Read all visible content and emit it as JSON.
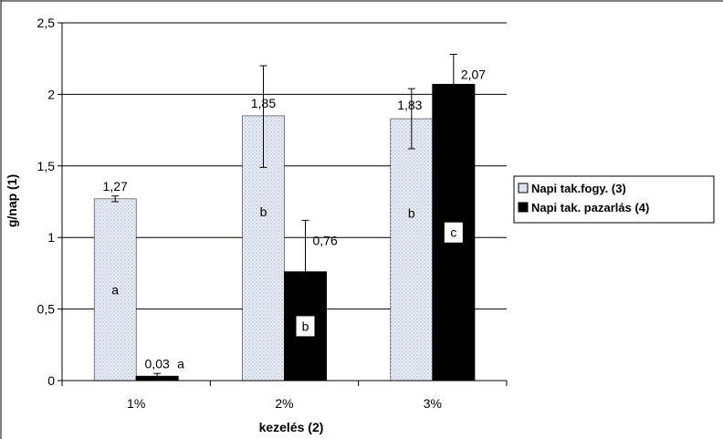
{
  "chart_data": {
    "type": "bar",
    "categories": [
      "1%",
      "2%",
      "3%"
    ],
    "xlabel": "kezelés (2)",
    "ylabel": "g/nap (1)",
    "ylim": [
      0,
      2.5
    ],
    "yticks": [
      "0",
      "0,5",
      "1",
      "1,5",
      "2",
      "2,5"
    ],
    "ytick_values": [
      0,
      0.5,
      1,
      1.5,
      2,
      2.5
    ],
    "grid": true,
    "legend_position": "right",
    "series": [
      {
        "name": "Napi tak.fogy. (3)",
        "values": [
          1.27,
          1.85,
          1.83
        ],
        "value_labels": [
          "1,27",
          "1,85",
          "1,83"
        ],
        "error_high": [
          1.29,
          2.2,
          2.04
        ],
        "error_low": [
          1.25,
          1.49,
          1.62
        ],
        "letters": [
          "a",
          "b",
          "b"
        ],
        "fill": "#dfe3f0",
        "pattern": "dotted"
      },
      {
        "name": "Napi tak. pazarlás (4)",
        "values": [
          0.03,
          0.76,
          2.07
        ],
        "value_labels": [
          "0,03",
          "0,76",
          "2,07"
        ],
        "error_high": [
          0.05,
          1.12,
          2.28
        ],
        "error_low": [
          0.01,
          0.4,
          1.86
        ],
        "letters": [
          "a",
          "b",
          "c"
        ],
        "fill": "#000000"
      }
    ]
  }
}
